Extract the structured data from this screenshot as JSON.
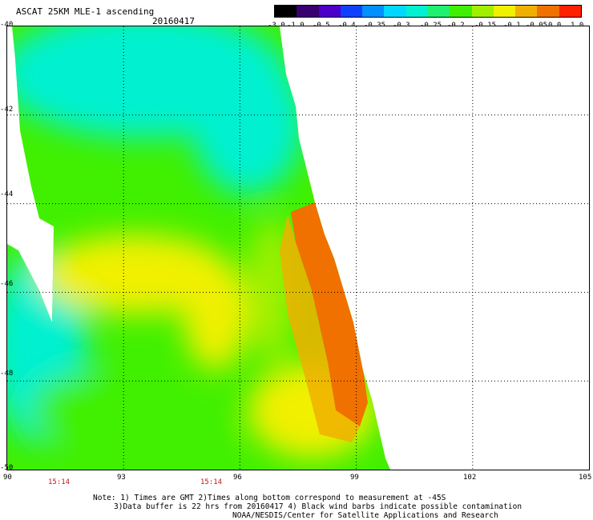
{
  "header": {
    "title": "ASCAT 25KM MLE-1 ascending",
    "date": "20160417"
  },
  "colorbar": {
    "labels": [
      "-3.0",
      "-1.0",
      "-0.5",
      "-0.4",
      "-0.35",
      "-0.3",
      "-0.25",
      "-0.2",
      "-0.15",
      "-0.1",
      "-0.05",
      "0.0",
      "1.0"
    ],
    "colors": [
      "#000000",
      "#3a0070",
      "#4a00c8",
      "#1040ff",
      "#0090ff",
      "#00d8ff",
      "#00f0d0",
      "#20f070",
      "#40f000",
      "#a0f000",
      "#f0f000",
      "#f0b000",
      "#f07000",
      "#ff2000"
    ]
  },
  "axes": {
    "x_ticks": [
      "90",
      "93",
      "96",
      "99",
      "102",
      "105"
    ],
    "y_ticks": [
      "-40",
      "-42",
      "-44",
      "-46",
      "-48",
      "-50"
    ],
    "x_range": [
      90,
      105
    ],
    "y_range": [
      -40,
      -50
    ],
    "grid": "dotted"
  },
  "times": [
    "15:14",
    "15:14"
  ],
  "notes": [
    "Note: 1) Times are GMT 2)Times along bottom correspond to measurement at -45S",
    "3)Data buffer is 22 hrs from 20160417 4) Black wind barbs indicate possible contamination",
    "NOAA/NESDIS/Center for Satellite Applications and Research"
  ]
}
